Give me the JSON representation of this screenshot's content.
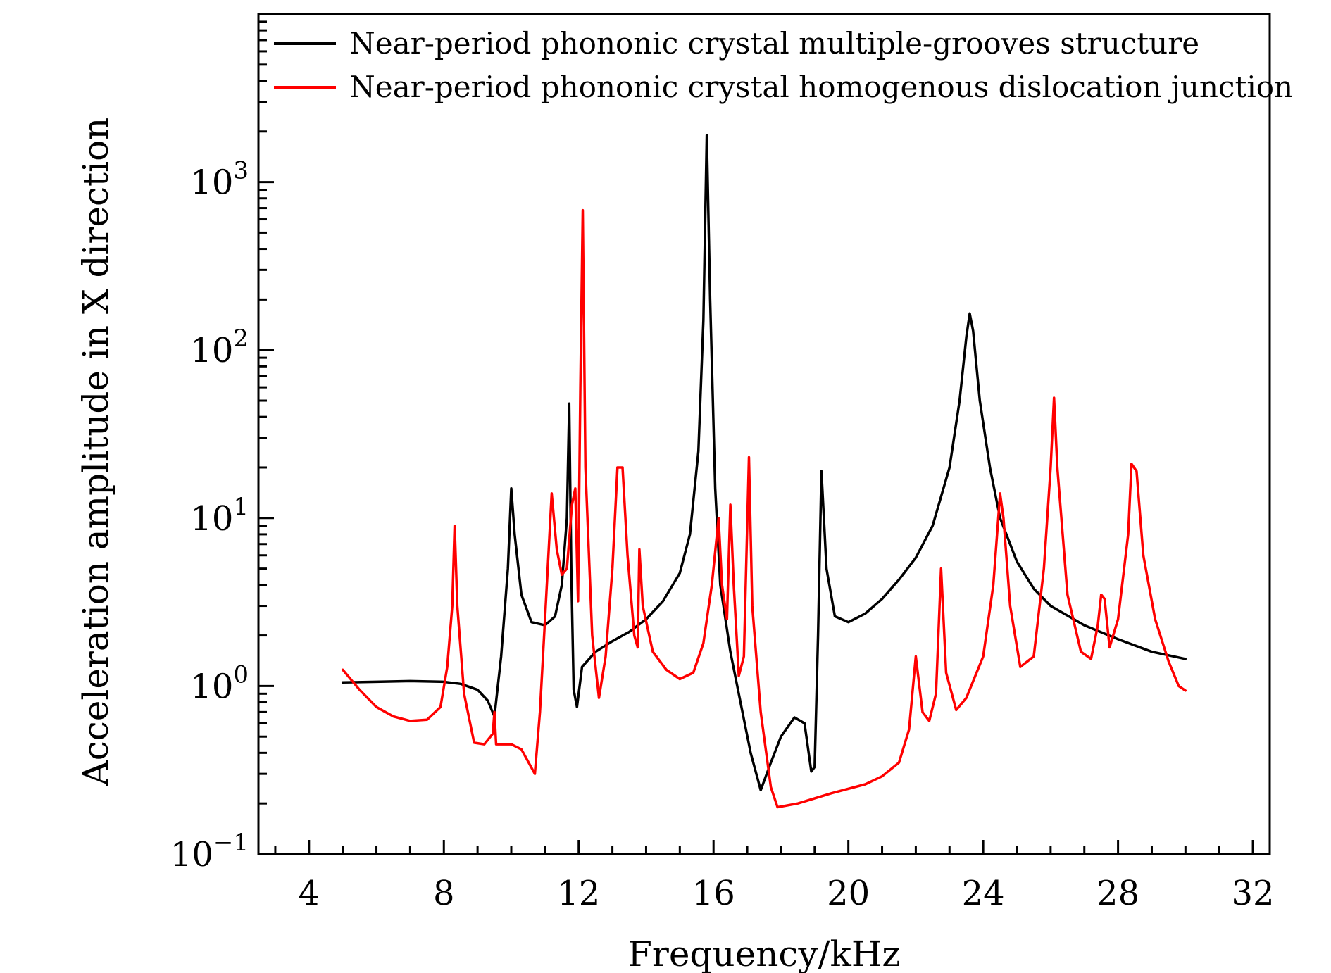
{
  "chart_data": {
    "type": "line",
    "xlabel": "Frequency/kHz",
    "ylabel": "Acceleration amplitude in X direction",
    "xlim": [
      2.5,
      32.5
    ],
    "ylim": [
      0.1,
      10000
    ],
    "yscale": "log",
    "grid": false,
    "legend": "top",
    "x_ticks": [
      "4",
      "8",
      "12",
      "16",
      "20",
      "24",
      "28",
      "32"
    ],
    "y_ticks": [
      {
        "base": "10",
        "exp": "−1",
        "value": 0.1
      },
      {
        "base": "10",
        "exp": "0",
        "value": 1
      },
      {
        "base": "10",
        "exp": "1",
        "value": 10
      },
      {
        "base": "10",
        "exp": "2",
        "value": 100
      },
      {
        "base": "10",
        "exp": "3",
        "value": 1000
      }
    ],
    "series": [
      {
        "name": "Near-period phononic crystal multiple-grooves structure",
        "color": "#000000",
        "points": [
          [
            5.0,
            1.05
          ],
          [
            6.0,
            1.06
          ],
          [
            7.0,
            1.07
          ],
          [
            8.0,
            1.06
          ],
          [
            8.5,
            1.03
          ],
          [
            9.0,
            0.95
          ],
          [
            9.3,
            0.82
          ],
          [
            9.5,
            0.66
          ],
          [
            9.7,
            1.5
          ],
          [
            9.9,
            5.0
          ],
          [
            10.0,
            15.0
          ],
          [
            10.1,
            8.0
          ],
          [
            10.3,
            3.5
          ],
          [
            10.6,
            2.4
          ],
          [
            11.0,
            2.3
          ],
          [
            11.3,
            2.6
          ],
          [
            11.5,
            4.0
          ],
          [
            11.65,
            10.0
          ],
          [
            11.72,
            48.0
          ],
          [
            11.78,
            5.0
          ],
          [
            11.85,
            0.95
          ],
          [
            11.95,
            0.75
          ],
          [
            12.1,
            1.3
          ],
          [
            12.5,
            1.6
          ],
          [
            13.0,
            1.85
          ],
          [
            13.5,
            2.1
          ],
          [
            14.0,
            2.5
          ],
          [
            14.5,
            3.2
          ],
          [
            15.0,
            4.7
          ],
          [
            15.3,
            8.0
          ],
          [
            15.55,
            25.0
          ],
          [
            15.7,
            150.0
          ],
          [
            15.8,
            1900.0
          ],
          [
            15.9,
            200.0
          ],
          [
            16.05,
            15.0
          ],
          [
            16.2,
            4.0
          ],
          [
            16.5,
            1.6
          ],
          [
            16.8,
            0.8
          ],
          [
            17.1,
            0.4
          ],
          [
            17.4,
            0.24
          ],
          [
            17.7,
            0.35
          ],
          [
            18.0,
            0.5
          ],
          [
            18.4,
            0.65
          ],
          [
            18.7,
            0.6
          ],
          [
            18.9,
            0.31
          ],
          [
            19.0,
            0.33
          ],
          [
            19.1,
            2.0
          ],
          [
            19.2,
            19.0
          ],
          [
            19.35,
            5.0
          ],
          [
            19.6,
            2.6
          ],
          [
            20.0,
            2.4
          ],
          [
            20.5,
            2.7
          ],
          [
            21.0,
            3.3
          ],
          [
            21.5,
            4.3
          ],
          [
            22.0,
            5.8
          ],
          [
            22.5,
            9.0
          ],
          [
            23.0,
            20.0
          ],
          [
            23.3,
            50.0
          ],
          [
            23.5,
            120.0
          ],
          [
            23.6,
            165.0
          ],
          [
            23.7,
            130.0
          ],
          [
            23.9,
            50.0
          ],
          [
            24.2,
            20.0
          ],
          [
            24.5,
            10.0
          ],
          [
            25.0,
            5.5
          ],
          [
            25.5,
            3.8
          ],
          [
            26.0,
            3.0
          ],
          [
            27.0,
            2.3
          ],
          [
            28.0,
            1.9
          ],
          [
            29.0,
            1.6
          ],
          [
            30.0,
            1.45
          ]
        ]
      },
      {
        "name": "Near-period phononic crystal homogenous dislocation junction",
        "color": "#ff0000",
        "points": [
          [
            5.0,
            1.25
          ],
          [
            5.5,
            0.95
          ],
          [
            6.0,
            0.75
          ],
          [
            6.5,
            0.66
          ],
          [
            7.0,
            0.62
          ],
          [
            7.5,
            0.63
          ],
          [
            7.9,
            0.75
          ],
          [
            8.1,
            1.3
          ],
          [
            8.25,
            3.0
          ],
          [
            8.32,
            9.0
          ],
          [
            8.4,
            3.0
          ],
          [
            8.6,
            0.9
          ],
          [
            8.9,
            0.46
          ],
          [
            9.2,
            0.45
          ],
          [
            9.45,
            0.52
          ],
          [
            9.5,
            0.7
          ],
          [
            9.55,
            0.45
          ],
          [
            10.0,
            0.45
          ],
          [
            10.3,
            0.42
          ],
          [
            10.7,
            0.3
          ],
          [
            10.85,
            0.7
          ],
          [
            11.0,
            2.5
          ],
          [
            11.2,
            14.0
          ],
          [
            11.35,
            6.5
          ],
          [
            11.5,
            4.6
          ],
          [
            11.65,
            5.0
          ],
          [
            11.8,
            12.0
          ],
          [
            11.9,
            15.0
          ],
          [
            11.98,
            3.2
          ],
          [
            12.05,
            60.0
          ],
          [
            12.12,
            680.0
          ],
          [
            12.2,
            20.0
          ],
          [
            12.4,
            2.0
          ],
          [
            12.6,
            0.85
          ],
          [
            12.8,
            1.5
          ],
          [
            13.0,
            5.0
          ],
          [
            13.15,
            20.0
          ],
          [
            13.3,
            20.0
          ],
          [
            13.45,
            6.0
          ],
          [
            13.65,
            2.0
          ],
          [
            13.75,
            1.7
          ],
          [
            13.8,
            6.5
          ],
          [
            13.9,
            3.0
          ],
          [
            14.2,
            1.6
          ],
          [
            14.6,
            1.25
          ],
          [
            15.0,
            1.1
          ],
          [
            15.4,
            1.2
          ],
          [
            15.7,
            1.8
          ],
          [
            15.95,
            4.0
          ],
          [
            16.15,
            10.0
          ],
          [
            16.25,
            4.0
          ],
          [
            16.4,
            2.5
          ],
          [
            16.5,
            12.0
          ],
          [
            16.6,
            4.0
          ],
          [
            16.75,
            1.15
          ],
          [
            16.9,
            1.5
          ],
          [
            17.05,
            23.0
          ],
          [
            17.15,
            3.0
          ],
          [
            17.4,
            0.7
          ],
          [
            17.7,
            0.25
          ],
          [
            17.9,
            0.19
          ],
          [
            18.5,
            0.2
          ],
          [
            19.5,
            0.23
          ],
          [
            20.5,
            0.26
          ],
          [
            21.0,
            0.29
          ],
          [
            21.5,
            0.35
          ],
          [
            21.8,
            0.55
          ],
          [
            22.0,
            1.5
          ],
          [
            22.2,
            0.7
          ],
          [
            22.4,
            0.62
          ],
          [
            22.6,
            0.9
          ],
          [
            22.75,
            5.0
          ],
          [
            22.9,
            1.2
          ],
          [
            23.2,
            0.72
          ],
          [
            23.5,
            0.85
          ],
          [
            24.0,
            1.5
          ],
          [
            24.3,
            4.0
          ],
          [
            24.5,
            14.0
          ],
          [
            24.6,
            10.0
          ],
          [
            24.8,
            3.0
          ],
          [
            25.1,
            1.3
          ],
          [
            25.5,
            1.5
          ],
          [
            25.8,
            5.0
          ],
          [
            26.0,
            20.0
          ],
          [
            26.1,
            52.0
          ],
          [
            26.2,
            20.0
          ],
          [
            26.5,
            3.5
          ],
          [
            26.9,
            1.6
          ],
          [
            27.2,
            1.45
          ],
          [
            27.4,
            2.3
          ],
          [
            27.5,
            3.5
          ],
          [
            27.6,
            3.3
          ],
          [
            27.75,
            1.7
          ],
          [
            28.0,
            2.5
          ],
          [
            28.3,
            8.0
          ],
          [
            28.4,
            21.0
          ],
          [
            28.55,
            19.0
          ],
          [
            28.75,
            6.0
          ],
          [
            29.1,
            2.5
          ],
          [
            29.5,
            1.4
          ],
          [
            29.8,
            1.0
          ],
          [
            30.0,
            0.94
          ]
        ]
      }
    ]
  }
}
